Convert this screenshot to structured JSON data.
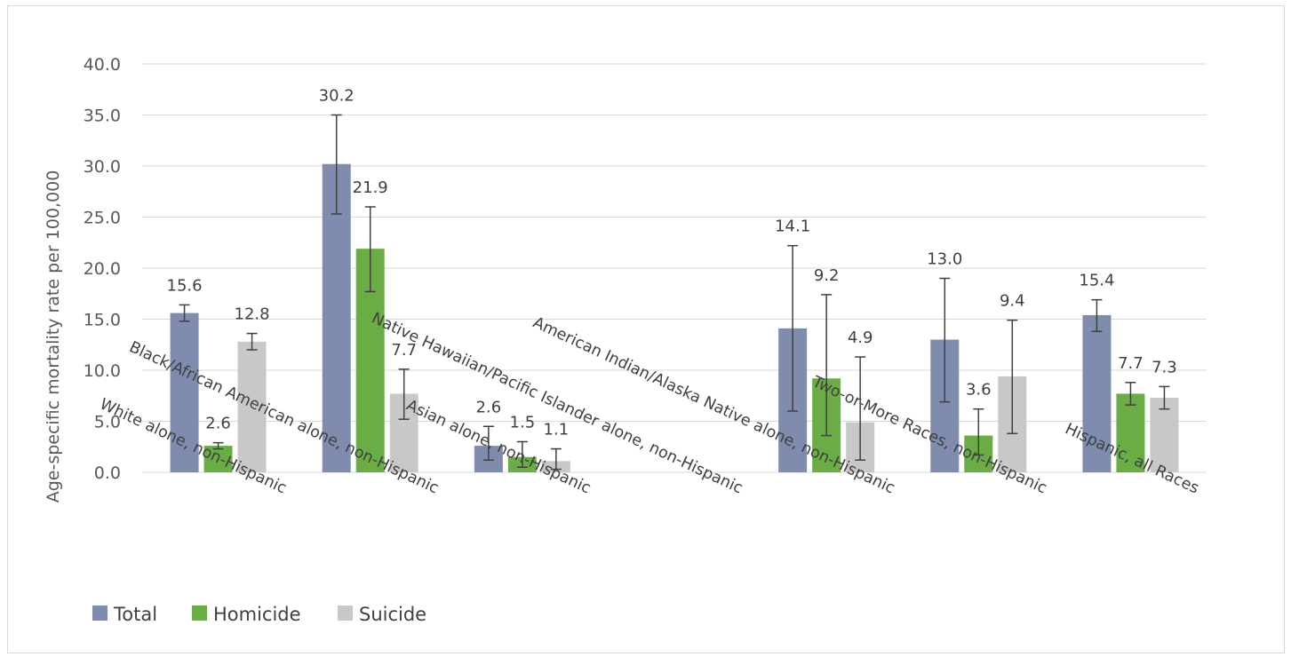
{
  "chart_data": {
    "type": "bar",
    "title": "",
    "xlabel": "",
    "ylabel": "Age-specific mortality rate per 100,000",
    "ylim": [
      0,
      40
    ],
    "ytick_step": 5,
    "ytick_labels": [
      "0.0",
      "5.0",
      "10.0",
      "15.0",
      "20.0",
      "25.0",
      "30.0",
      "35.0",
      "40.0"
    ],
    "grid": true,
    "legend_position": "bottom-left",
    "categories": [
      "White alone, non-Hispanic",
      "Black/African American alone, non-Hispanic",
      "Asian alone, non-Hispanic",
      "Native Hawaiian/Pacific Islander alone, non-Hispanic",
      "American Indian/Alaska Native alone, non-Hispanic",
      "Two-or-More Races, non-Hispanic",
      "Hispanic, all Races"
    ],
    "series": [
      {
        "name": "Total",
        "color": "#7f8cae",
        "values": [
          15.6,
          30.2,
          2.6,
          null,
          14.1,
          13.0,
          15.4
        ],
        "labels": [
          "15.6",
          "30.2",
          "2.6",
          "",
          "14.1",
          "13.0",
          "15.4"
        ],
        "error_low": [
          14.8,
          25.3,
          1.2,
          null,
          6.0,
          6.9,
          13.8
        ],
        "error_high": [
          16.4,
          35.0,
          4.5,
          null,
          22.2,
          19.0,
          16.9
        ]
      },
      {
        "name": "Homicide",
        "color": "#6aad45",
        "values": [
          2.6,
          21.9,
          1.5,
          null,
          9.2,
          3.6,
          7.7
        ],
        "labels": [
          "2.6",
          "21.9",
          "1.5",
          "",
          "9.2",
          "3.6",
          "7.7"
        ],
        "error_low": [
          2.3,
          17.7,
          0.5,
          null,
          3.6,
          1.7,
          6.6
        ],
        "error_high": [
          2.9,
          26.0,
          3.0,
          null,
          17.4,
          6.2,
          8.8
        ]
      },
      {
        "name": "Suicide",
        "color": "#c8c8c8",
        "values": [
          12.8,
          7.7,
          1.1,
          null,
          4.9,
          9.4,
          7.3
        ],
        "labels": [
          "12.8",
          "7.7",
          "1.1",
          "",
          "4.9",
          "9.4",
          "7.3"
        ],
        "error_low": [
          12.0,
          5.2,
          0.3,
          null,
          1.2,
          3.8,
          6.2
        ],
        "error_high": [
          13.6,
          10.1,
          2.3,
          null,
          11.3,
          14.9,
          8.4
        ]
      }
    ]
  }
}
